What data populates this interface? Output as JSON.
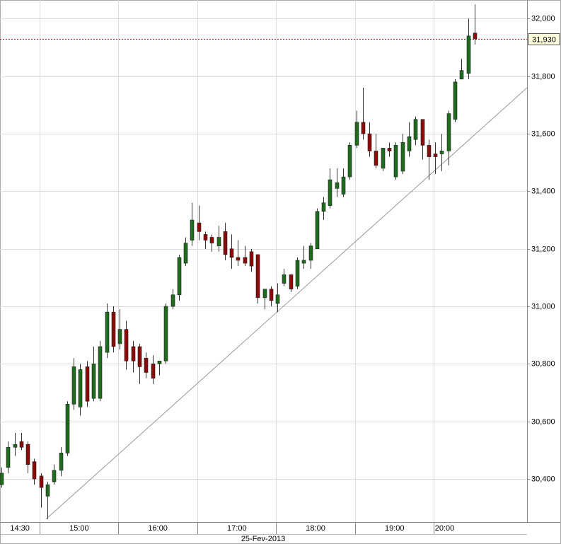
{
  "chart_data": {
    "type": "candlestick",
    "x": [
      "14:30",
      "14:35",
      "14:40",
      "14:45",
      "14:50",
      "14:55",
      "15:00",
      "15:05",
      "15:10",
      "15:15",
      "15:20",
      "15:25",
      "15:30",
      "15:35",
      "15:40",
      "15:45",
      "15:50",
      "15:55",
      "16:00",
      "16:05",
      "16:10",
      "16:15",
      "16:20",
      "16:25",
      "16:30",
      "16:35",
      "16:40",
      "16:45",
      "16:50",
      "16:55",
      "17:00",
      "17:05",
      "17:10",
      "17:15",
      "17:20",
      "17:25",
      "17:30",
      "17:35",
      "17:40",
      "17:45",
      "17:50",
      "17:55",
      "18:00",
      "18:05",
      "18:10",
      "18:15",
      "18:20",
      "18:25",
      "18:30",
      "18:35",
      "18:40",
      "18:45",
      "18:50",
      "18:55",
      "19:00",
      "19:05",
      "19:10",
      "19:15",
      "19:20",
      "19:25",
      "19:30",
      "19:35",
      "19:40",
      "19:45",
      "19:50",
      "19:55",
      "20:00",
      "20:05",
      "20:10",
      "20:15",
      "20:20",
      "20:25",
      "20:30"
    ],
    "open": [
      30380,
      30440,
      30510,
      30530,
      30520,
      30460,
      30410,
      30340,
      30390,
      30430,
      30490,
      30660,
      30650,
      30790,
      30680,
      30680,
      30840,
      30980,
      30870,
      30920,
      30860,
      30860,
      30820,
      30800,
      30800,
      30810,
      31000,
      31040,
      31150,
      31230,
      31290,
      31250,
      31240,
      31210,
      31260,
      31200,
      31170,
      31170,
      31190,
      31180,
      31030,
      31060,
      31010,
      31080,
      31110,
      31070,
      31150,
      31160,
      31200,
      31330,
      31350,
      31410,
      31390,
      31450,
      31560,
      31640,
      31600,
      31540,
      31480,
      31550,
      31450,
      31470,
      31540,
      31580,
      31650,
      31560,
      31530,
      31530,
      31540,
      31650,
      31790,
      31810,
      31950
    ],
    "high": [
      30440,
      30530,
      30560,
      30560,
      30530,
      30470,
      30420,
      30390,
      30450,
      30510,
      30670,
      30820,
      30800,
      30810,
      30860,
      30880,
      31010,
      31000,
      30990,
      30950,
      30880,
      30870,
      30840,
      30830,
      30810,
      31010,
      31060,
      31180,
      31240,
      31360,
      31350,
      31260,
      31250,
      31280,
      31290,
      31250,
      31230,
      31210,
      31200,
      31180,
      31060,
      31070,
      31080,
      31130,
      31110,
      31170,
      31210,
      31220,
      31340,
      31380,
      31480,
      31480,
      31480,
      31570,
      31680,
      31760,
      31640,
      31600,
      31550,
      31570,
      31570,
      31600,
      31640,
      31660,
      31650,
      31580,
      31570,
      31600,
      31680,
      31790,
      31860,
      32000,
      32050
    ],
    "low": [
      30370,
      30420,
      30480,
      30500,
      30420,
      30380,
      30300,
      30260,
      30380,
      30410,
      30480,
      30640,
      30620,
      30650,
      30670,
      30670,
      30820,
      30840,
      30850,
      30780,
      30770,
      30730,
      30750,
      30730,
      30760,
      30800,
      30990,
      31020,
      31140,
      31210,
      31230,
      31200,
      31190,
      31190,
      31160,
      31130,
      31140,
      31140,
      31120,
      31010,
      30990,
      31000,
      30980,
      31070,
      31050,
      31060,
      31130,
      31130,
      31200,
      31300,
      31340,
      31380,
      31380,
      31440,
      31550,
      31580,
      31520,
      31480,
      31470,
      31520,
      31440,
      31460,
      31520,
      31560,
      31510,
      31440,
      31460,
      31470,
      31490,
      31640,
      31790,
      31790,
      31910
    ],
    "close": [
      30420,
      30510,
      30520,
      30510,
      30450,
      30400,
      30370,
      30380,
      30430,
      30490,
      30660,
      30790,
      30780,
      30670,
      30800,
      30860,
      30980,
      30860,
      30920,
      30810,
      30810,
      30790,
      30770,
      30750,
      30810,
      31000,
      31040,
      31170,
      31220,
      31300,
      31260,
      31230,
      31220,
      31240,
      31180,
      31170,
      31160,
      31150,
      31140,
      31030,
      31060,
      31020,
      31040,
      31110,
      31060,
      31160,
      31160,
      31210,
      31330,
      31360,
      31440,
      31430,
      31450,
      31560,
      31640,
      31600,
      31540,
      31490,
      31550,
      31540,
      31560,
      31570,
      31590,
      31650,
      31560,
      31520,
      31520,
      31540,
      31670,
      31780,
      31820,
      31940,
      31930
    ],
    "up_color": "#1e6b1e",
    "down_color": "#8b0a0a",
    "xlim": [
      "14:30",
      "21:11"
    ],
    "xticks": [
      "14:30",
      "15:00",
      "16:00",
      "17:00",
      "18:00",
      "19:00",
      "20:00"
    ],
    "x_label": "25-Fev-2013",
    "ylim": [
      30250,
      32065
    ],
    "yticks": [
      {
        "value": 30400,
        "label": "30,400"
      },
      {
        "value": 30600,
        "label": "30,600"
      },
      {
        "value": 30800,
        "label": "30,800"
      },
      {
        "value": 31000,
        "label": "31,000"
      },
      {
        "value": 31200,
        "label": "31,200"
      },
      {
        "value": 31400,
        "label": "31,400"
      },
      {
        "value": 31600,
        "label": "31,600"
      },
      {
        "value": 31800,
        "label": "31,800"
      },
      {
        "value": 32000,
        "label": "32,000"
      }
    ],
    "grid": true,
    "last_price": {
      "value": 31930,
      "label": "31,930",
      "color": "#cc0000"
    },
    "trendline": {
      "x": [
        "15:05",
        "21:11"
      ],
      "y": [
        30260,
        31760
      ],
      "color": "#999999"
    }
  }
}
